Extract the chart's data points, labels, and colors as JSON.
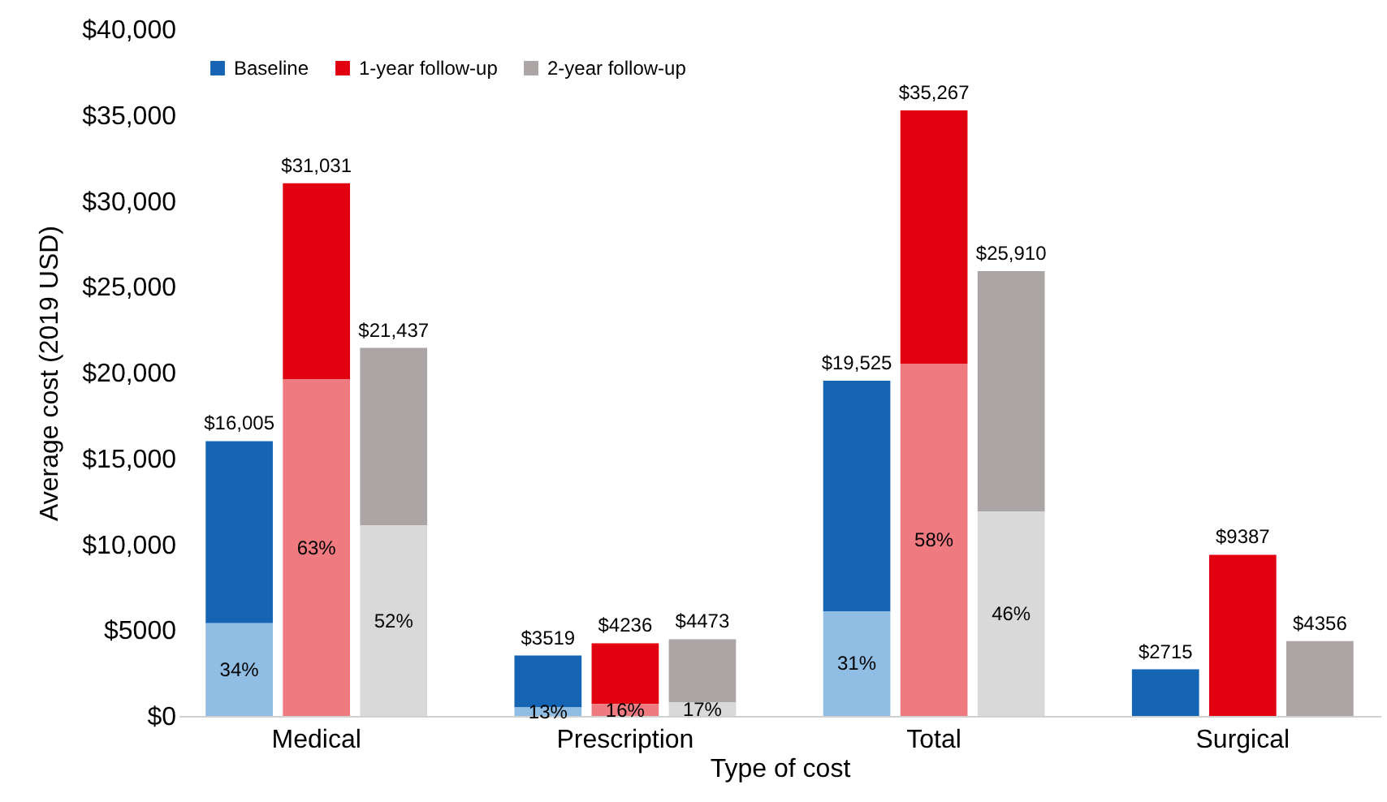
{
  "chart_data": {
    "type": "bar",
    "stacked": true,
    "xlabel": "Type of cost",
    "ylabel": "Average cost (2019 USD)",
    "categories": [
      null,
      "Medical",
      null,
      null,
      null,
      "Prescription",
      null,
      null,
      null,
      "Total",
      null,
      null,
      null,
      "Surgical",
      null
    ],
    "series": [
      {
        "color": "#8fbde3",
        "values": [
          5400,
          null,
          null,
          null,
          500,
          null,
          null,
          null,
          6100,
          null,
          null,
          null,
          null,
          null,
          null
        ]
      },
      {
        "color": "#ef7a80",
        "values": [
          null,
          19600,
          null,
          null,
          null,
          700,
          null,
          null,
          null,
          20500,
          null,
          null,
          null,
          null,
          null
        ]
      },
      {
        "color": "#d9d9d9",
        "values": [
          null,
          null,
          11100,
          null,
          null,
          null,
          800,
          null,
          null,
          null,
          11900,
          null,
          null,
          null,
          null
        ]
      },
      {
        "name": "Baseline",
        "color": "#1565b4",
        "values": [
          10605,
          null,
          null,
          null,
          3019,
          null,
          null,
          null,
          13425,
          null,
          null,
          null,
          2715,
          null,
          null
        ]
      },
      {
        "name": "1-year follow-up",
        "color": "#e00010",
        "values": [
          null,
          11431,
          null,
          null,
          null,
          3536,
          null,
          null,
          null,
          14767,
          null,
          null,
          null,
          9387,
          null
        ]
      },
      {
        "name": "2-year follow-up",
        "color": "#aba5a5",
        "values": [
          null,
          null,
          10337,
          null,
          null,
          null,
          3673,
          null,
          null,
          null,
          14010,
          null,
          null,
          null,
          4356
        ]
      }
    ],
    "totals": [
      "$16,005",
      "$31,031",
      "$21,437",
      null,
      "$3519",
      "$4236",
      "$4473",
      null,
      "$19,525",
      "$35,267",
      "$25,910",
      null,
      "$2715",
      "$9387",
      "$4356"
    ],
    "annotations": [
      "34%",
      "13%",
      "31%",
      "63%",
      "16%",
      "58%",
      "52%",
      "17%",
      "46%"
    ],
    "ylim": [
      0,
      40000
    ],
    "yticks": [
      {
        "value": 0,
        "label": "$0"
      },
      {
        "value": 5000,
        "label": "$5000"
      },
      {
        "value": 10000,
        "label": "$10,000"
      },
      {
        "value": 15000,
        "label": "$15,000"
      },
      {
        "value": 20000,
        "label": "$20,000"
      },
      {
        "value": 25000,
        "label": "$25,000"
      },
      {
        "value": 30000,
        "label": "$30,000"
      },
      {
        "value": 35000,
        "label": "$35,000"
      },
      {
        "value": 40000,
        "label": "$40,000"
      }
    ],
    "legend": "top left"
  }
}
